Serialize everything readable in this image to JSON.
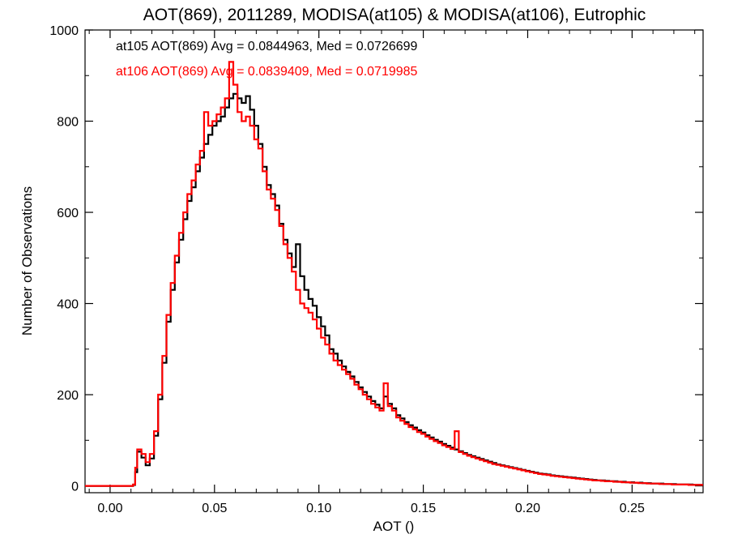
{
  "chart_data": {
    "type": "line",
    "title": "AOT(869), 2011289, MODISA(at105) & MODISA(at106), Eutrophic",
    "xlabel": "AOT ()",
    "ylabel": "Number of Observations",
    "xlim": [
      -0.012,
      0.284
    ],
    "ylim": [
      -15,
      1000
    ],
    "xticks": [
      "0.00",
      "0.05",
      "0.10",
      "0.15",
      "0.20",
      "0.25"
    ],
    "yticks": [
      "0",
      "200",
      "400",
      "600",
      "800",
      "1000"
    ],
    "grid": false,
    "legend_placement": "top-left",
    "series": [
      {
        "name": "at105",
        "color": "#000000",
        "legend": "at105 AOT(869) Avg = 0.0844963, Med = 0.0726699",
        "points": [
          [
            -0.012,
            0
          ],
          [
            0.005,
            0
          ],
          [
            0.011,
            2
          ],
          [
            0.012,
            30
          ],
          [
            0.013,
            75
          ],
          [
            0.015,
            62
          ],
          [
            0.017,
            45
          ],
          [
            0.019,
            60
          ],
          [
            0.021,
            110
          ],
          [
            0.023,
            190
          ],
          [
            0.025,
            270
          ],
          [
            0.027,
            360
          ],
          [
            0.029,
            430
          ],
          [
            0.031,
            490
          ],
          [
            0.033,
            540
          ],
          [
            0.035,
            585
          ],
          [
            0.037,
            625
          ],
          [
            0.039,
            655
          ],
          [
            0.041,
            690
          ],
          [
            0.043,
            720
          ],
          [
            0.045,
            750
          ],
          [
            0.047,
            770
          ],
          [
            0.049,
            790
          ],
          [
            0.051,
            800
          ],
          [
            0.053,
            810
          ],
          [
            0.055,
            830
          ],
          [
            0.057,
            850
          ],
          [
            0.059,
            860
          ],
          [
            0.061,
            850
          ],
          [
            0.063,
            840
          ],
          [
            0.065,
            855
          ],
          [
            0.067,
            825
          ],
          [
            0.069,
            790
          ],
          [
            0.071,
            750
          ],
          [
            0.073,
            700
          ],
          [
            0.075,
            660
          ],
          [
            0.077,
            640
          ],
          [
            0.079,
            615
          ],
          [
            0.081,
            575
          ],
          [
            0.083,
            540
          ],
          [
            0.085,
            510
          ],
          [
            0.087,
            480
          ],
          [
            0.089,
            530
          ],
          [
            0.091,
            460
          ],
          [
            0.093,
            430
          ],
          [
            0.095,
            410
          ],
          [
            0.097,
            395
          ],
          [
            0.099,
            370
          ],
          [
            0.101,
            350
          ],
          [
            0.103,
            330
          ],
          [
            0.105,
            300
          ],
          [
            0.107,
            290
          ],
          [
            0.109,
            275
          ],
          [
            0.111,
            262
          ],
          [
            0.113,
            250
          ],
          [
            0.115,
            240
          ],
          [
            0.117,
            228
          ],
          [
            0.119,
            216
          ],
          [
            0.121,
            206
          ],
          [
            0.123,
            196
          ],
          [
            0.125,
            186
          ],
          [
            0.127,
            178
          ],
          [
            0.129,
            170
          ],
          [
            0.131,
            196
          ],
          [
            0.133,
            180
          ],
          [
            0.135,
            170
          ],
          [
            0.137,
            155
          ],
          [
            0.139,
            148
          ],
          [
            0.141,
            140
          ],
          [
            0.143,
            133
          ],
          [
            0.145,
            128
          ],
          [
            0.147,
            122
          ],
          [
            0.149,
            117
          ],
          [
            0.151,
            111
          ],
          [
            0.153,
            106
          ],
          [
            0.155,
            101
          ],
          [
            0.157,
            97
          ],
          [
            0.159,
            92
          ],
          [
            0.161,
            88
          ],
          [
            0.163,
            84
          ],
          [
            0.165,
            80
          ],
          [
            0.167,
            76
          ],
          [
            0.169,
            72
          ],
          [
            0.171,
            68
          ],
          [
            0.173,
            65
          ],
          [
            0.175,
            62
          ],
          [
            0.177,
            59
          ],
          [
            0.179,
            56
          ],
          [
            0.181,
            53
          ],
          [
            0.183,
            50
          ],
          [
            0.185,
            47
          ],
          [
            0.187,
            45
          ],
          [
            0.189,
            43
          ],
          [
            0.191,
            41
          ],
          [
            0.193,
            39
          ],
          [
            0.195,
            37
          ],
          [
            0.197,
            35
          ],
          [
            0.199,
            33
          ],
          [
            0.201,
            31
          ],
          [
            0.203,
            29
          ],
          [
            0.205,
            27
          ],
          [
            0.207,
            26
          ],
          [
            0.209,
            25
          ],
          [
            0.211,
            23
          ],
          [
            0.213,
            22
          ],
          [
            0.215,
            21
          ],
          [
            0.217,
            20
          ],
          [
            0.219,
            19
          ],
          [
            0.221,
            18
          ],
          [
            0.223,
            17
          ],
          [
            0.225,
            16
          ],
          [
            0.227,
            15
          ],
          [
            0.229,
            14
          ],
          [
            0.231,
            13
          ],
          [
            0.233,
            12
          ],
          [
            0.235,
            12
          ],
          [
            0.237,
            11
          ],
          [
            0.239,
            10
          ],
          [
            0.241,
            10
          ],
          [
            0.243,
            9
          ],
          [
            0.245,
            9
          ],
          [
            0.247,
            8
          ],
          [
            0.249,
            8
          ],
          [
            0.251,
            7
          ],
          [
            0.253,
            7
          ],
          [
            0.255,
            6
          ],
          [
            0.257,
            6
          ],
          [
            0.259,
            5
          ],
          [
            0.261,
            5
          ],
          [
            0.263,
            5
          ],
          [
            0.265,
            4
          ],
          [
            0.267,
            4
          ],
          [
            0.269,
            4
          ],
          [
            0.271,
            3
          ],
          [
            0.273,
            3
          ],
          [
            0.275,
            3
          ],
          [
            0.277,
            3
          ],
          [
            0.279,
            2
          ],
          [
            0.281,
            2
          ],
          [
            0.284,
            2
          ]
        ]
      },
      {
        "name": "at106",
        "color": "#ff0000",
        "legend": "at106 AOT(869) Avg = 0.0839409, Med = 0.0719985",
        "points": [
          [
            -0.012,
            0
          ],
          [
            0.005,
            0
          ],
          [
            0.011,
            3
          ],
          [
            0.012,
            40
          ],
          [
            0.013,
            80
          ],
          [
            0.015,
            70
          ],
          [
            0.017,
            52
          ],
          [
            0.019,
            70
          ],
          [
            0.021,
            120
          ],
          [
            0.023,
            200
          ],
          [
            0.025,
            285
          ],
          [
            0.027,
            375
          ],
          [
            0.029,
            445
          ],
          [
            0.031,
            505
          ],
          [
            0.033,
            555
          ],
          [
            0.035,
            600
          ],
          [
            0.037,
            640
          ],
          [
            0.039,
            670
          ],
          [
            0.041,
            705
          ],
          [
            0.043,
            735
          ],
          [
            0.045,
            820
          ],
          [
            0.047,
            790
          ],
          [
            0.049,
            800
          ],
          [
            0.051,
            815
          ],
          [
            0.053,
            830
          ],
          [
            0.055,
            850
          ],
          [
            0.057,
            930
          ],
          [
            0.059,
            880
          ],
          [
            0.061,
            820
          ],
          [
            0.063,
            800
          ],
          [
            0.065,
            810
          ],
          [
            0.067,
            790
          ],
          [
            0.069,
            760
          ],
          [
            0.071,
            740
          ],
          [
            0.073,
            690
          ],
          [
            0.075,
            650
          ],
          [
            0.077,
            630
          ],
          [
            0.079,
            605
          ],
          [
            0.081,
            570
          ],
          [
            0.083,
            530
          ],
          [
            0.085,
            500
          ],
          [
            0.087,
            470
          ],
          [
            0.089,
            430
          ],
          [
            0.091,
            400
          ],
          [
            0.093,
            390
          ],
          [
            0.095,
            380
          ],
          [
            0.097,
            365
          ],
          [
            0.099,
            345
          ],
          [
            0.101,
            325
          ],
          [
            0.103,
            310
          ],
          [
            0.105,
            290
          ],
          [
            0.107,
            275
          ],
          [
            0.109,
            265
          ],
          [
            0.111,
            255
          ],
          [
            0.113,
            245
          ],
          [
            0.115,
            235
          ],
          [
            0.117,
            222
          ],
          [
            0.119,
            212
          ],
          [
            0.121,
            200
          ],
          [
            0.123,
            190
          ],
          [
            0.125,
            180
          ],
          [
            0.127,
            172
          ],
          [
            0.129,
            165
          ],
          [
            0.131,
            225
          ],
          [
            0.133,
            175
          ],
          [
            0.135,
            165
          ],
          [
            0.137,
            150
          ],
          [
            0.139,
            143
          ],
          [
            0.141,
            136
          ],
          [
            0.143,
            129
          ],
          [
            0.145,
            124
          ],
          [
            0.147,
            118
          ],
          [
            0.149,
            114
          ],
          [
            0.151,
            108
          ],
          [
            0.153,
            103
          ],
          [
            0.155,
            98
          ],
          [
            0.157,
            94
          ],
          [
            0.159,
            89
          ],
          [
            0.161,
            85
          ],
          [
            0.163,
            81
          ],
          [
            0.165,
            120
          ],
          [
            0.167,
            74
          ],
          [
            0.169,
            70
          ],
          [
            0.171,
            66
          ],
          [
            0.173,
            63
          ],
          [
            0.175,
            60
          ],
          [
            0.177,
            57
          ],
          [
            0.179,
            54
          ],
          [
            0.181,
            51
          ],
          [
            0.183,
            48
          ],
          [
            0.185,
            46
          ],
          [
            0.187,
            44
          ],
          [
            0.189,
            42
          ],
          [
            0.191,
            40
          ],
          [
            0.193,
            38
          ],
          [
            0.195,
            36
          ],
          [
            0.197,
            34
          ],
          [
            0.199,
            32
          ],
          [
            0.201,
            30
          ],
          [
            0.203,
            28
          ],
          [
            0.205,
            26
          ],
          [
            0.207,
            25
          ],
          [
            0.209,
            24
          ],
          [
            0.211,
            22
          ],
          [
            0.213,
            21
          ],
          [
            0.215,
            20
          ],
          [
            0.217,
            19
          ],
          [
            0.219,
            18
          ],
          [
            0.221,
            17
          ],
          [
            0.223,
            16
          ],
          [
            0.225,
            15
          ],
          [
            0.227,
            14
          ],
          [
            0.229,
            13
          ],
          [
            0.231,
            12
          ],
          [
            0.233,
            12
          ],
          [
            0.235,
            11
          ],
          [
            0.237,
            10
          ],
          [
            0.239,
            10
          ],
          [
            0.241,
            9
          ],
          [
            0.243,
            9
          ],
          [
            0.245,
            8
          ],
          [
            0.247,
            8
          ],
          [
            0.249,
            7
          ],
          [
            0.251,
            7
          ],
          [
            0.253,
            6
          ],
          [
            0.255,
            6
          ],
          [
            0.257,
            5
          ],
          [
            0.259,
            5
          ],
          [
            0.261,
            5
          ],
          [
            0.263,
            4
          ],
          [
            0.265,
            4
          ],
          [
            0.267,
            4
          ],
          [
            0.269,
            3
          ],
          [
            0.271,
            3
          ],
          [
            0.273,
            3
          ],
          [
            0.275,
            3
          ],
          [
            0.277,
            2
          ],
          [
            0.279,
            2
          ],
          [
            0.281,
            2
          ],
          [
            0.284,
            2
          ]
        ]
      }
    ]
  }
}
